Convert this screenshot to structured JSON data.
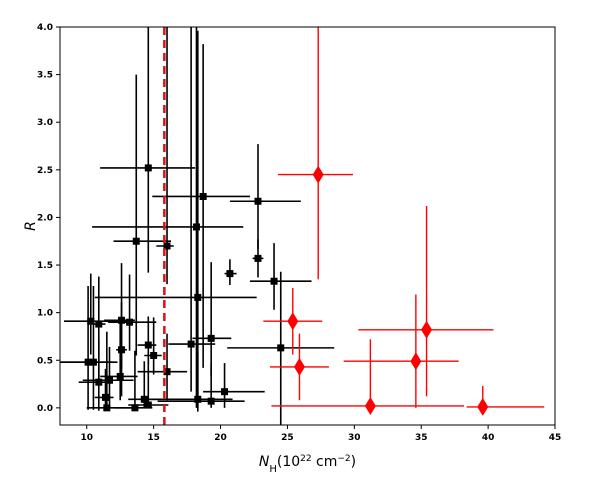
{
  "chart_data": {
    "type": "scatter",
    "xlabel_base": "N",
    "xlabel_sub": "H",
    "xlabel_unit_pre": "(10",
    "xlabel_unit_exp": "22",
    "xlabel_unit_mid": " cm",
    "xlabel_unit_exp2": "−2",
    "xlabel_unit_post": ")",
    "ylabel": "R",
    "xlim": [
      8,
      45
    ],
    "ylim": [
      -0.18,
      4.0
    ],
    "xticks": [
      10,
      15,
      20,
      25,
      30,
      35,
      40,
      45
    ],
    "yticks": [
      0.0,
      0.5,
      1.0,
      1.5,
      2.0,
      2.5,
      3.0,
      3.5,
      4.0
    ],
    "ytick_labels": [
      "0.0",
      "0.5",
      "1.0",
      "1.5",
      "2.0",
      "2.5",
      "3.0",
      "3.5",
      "4.0"
    ],
    "grid": false,
    "threshold_x": 15.8,
    "colors": {
      "group_1": "#000000",
      "group_2": "#ff0000",
      "threshold": "#dd1111"
    },
    "series": [
      {
        "marker": "square",
        "color": "#000000",
        "points": [
          {
            "x": 14.6,
            "y": 2.52,
            "xerr": [
              3.6,
              3.5
            ],
            "yerr": [
              1.1,
              1.6
            ]
          },
          {
            "x": 18.7,
            "y": 2.22,
            "xerr": [
              3.8,
              3.5
            ],
            "yerr": [
              1.8,
              1.6
            ]
          },
          {
            "x": 22.8,
            "y": 2.17,
            "xerr": [
              2.1,
              3.2
            ],
            "yerr": [
              0.5,
              0.6
            ]
          },
          {
            "x": 18.2,
            "y": 1.9,
            "xerr": [
              7.8,
              3.5
            ],
            "yerr": [
              1.9,
              2.1
            ]
          },
          {
            "x": 13.7,
            "y": 1.75,
            "xerr": [
              1.7,
              2.6
            ],
            "yerr": [
              1.2,
              1.75
            ]
          },
          {
            "x": 16.0,
            "y": 1.7,
            "xerr": [
              0.8,
              0.5
            ],
            "yerr": [
              0.4,
              2.3
            ]
          },
          {
            "x": 22.8,
            "y": 1.57,
            "xerr": [
              0.4,
              0.4
            ],
            "yerr": [
              0.2,
              0.2
            ]
          },
          {
            "x": 20.7,
            "y": 1.41,
            "xerr": [
              0.4,
              0.5
            ],
            "yerr": [
              0.12,
              0.15
            ]
          },
          {
            "x": 24.0,
            "y": 1.33,
            "xerr": [
              1.8,
              2.8
            ],
            "yerr": [
              0.3,
              0.4
            ]
          },
          {
            "x": 18.3,
            "y": 1.16,
            "xerr": [
              7.7,
              4.4
            ],
            "yerr": [
              1.2,
              2.8
            ]
          },
          {
            "x": 12.6,
            "y": 0.92,
            "xerr": [
              1.3,
              1.0
            ],
            "yerr": [
              0.8,
              0.6
            ]
          },
          {
            "x": 10.3,
            "y": 0.91,
            "xerr": [
              2.0,
              3.0
            ],
            "yerr": [
              0.35,
              0.5
            ]
          },
          {
            "x": 10.9,
            "y": 0.88,
            "xerr": [
              0.4,
              0.5
            ],
            "yerr": [
              0.6,
              0.5
            ]
          },
          {
            "x": 13.2,
            "y": 0.9,
            "xerr": [
              1.6,
              2.0
            ],
            "yerr": [
              0.3,
              0.5
            ]
          },
          {
            "x": 14.6,
            "y": 0.66,
            "xerr": [
              0.8,
              0.6
            ],
            "yerr": [
              0.2,
              0.3
            ]
          },
          {
            "x": 19.3,
            "y": 0.73,
            "xerr": [
              1.4,
              1.5
            ],
            "yerr": [
              0.4,
              0.8
            ]
          },
          {
            "x": 17.8,
            "y": 0.67,
            "xerr": [
              1.7,
              1.8
            ],
            "yerr": [
              0.5,
              3.5
            ]
          },
          {
            "x": 24.5,
            "y": 0.63,
            "xerr": [
              4.0,
              4.0
            ],
            "yerr": [
              0.9,
              0.8
            ]
          },
          {
            "x": 12.6,
            "y": 0.61,
            "xerr": [
              0.4,
              0.4
            ],
            "yerr": [
              0.2,
              0.5
            ]
          },
          {
            "x": 15.0,
            "y": 0.55,
            "xerr": [
              0.7,
              0.6
            ],
            "yerr": [
              0.2,
              0.4
            ]
          },
          {
            "x": 10.1,
            "y": 0.48,
            "xerr": [
              2.2,
              1.8
            ],
            "yerr": [
              0.5,
              0.8
            ]
          },
          {
            "x": 10.5,
            "y": 0.48,
            "xerr": [
              2.6,
              1.8
            ],
            "yerr": [
              0.5,
              0.8
            ]
          },
          {
            "x": 16.0,
            "y": 0.38,
            "xerr": [
              2.2,
              1.5
            ],
            "yerr": [
              0.3,
              0.4
            ]
          },
          {
            "x": 12.5,
            "y": 0.33,
            "xerr": [
              1.5,
              1.3
            ],
            "yerr": [
              0.25,
              0.6
            ]
          },
          {
            "x": 10.9,
            "y": 0.27,
            "xerr": [
              1.5,
              1.0
            ],
            "yerr": [
              0.3,
              0.45
            ]
          },
          {
            "x": 11.7,
            "y": 0.29,
            "xerr": [
              2.0,
              1.8
            ],
            "yerr": [
              0.3,
              0.35
            ]
          },
          {
            "x": 20.3,
            "y": 0.17,
            "xerr": [
              1.6,
              3.0
            ],
            "yerr": [
              0.17,
              0.3
            ]
          },
          {
            "x": 11.4,
            "y": 0.11,
            "xerr": [
              0.8,
              0.6
            ],
            "yerr": [
              0.11,
              0.3
            ]
          },
          {
            "x": 14.3,
            "y": 0.09,
            "xerr": [
              1.2,
              1.0
            ],
            "yerr": [
              0.09,
              0.4
            ]
          },
          {
            "x": 18.3,
            "y": 0.09,
            "xerr": [
              4.0,
              2.6
            ],
            "yerr": [
              0.09,
              0.5
            ]
          },
          {
            "x": 19.3,
            "y": 0.07,
            "xerr": [
              4.0,
              2.5
            ],
            "yerr": [
              0.07,
              0.4
            ]
          },
          {
            "x": 14.6,
            "y": 0.03,
            "xerr": [
              1.5,
              1.5
            ],
            "yerr": [
              0.03,
              0.5
            ]
          },
          {
            "x": 11.5,
            "y": 0.0,
            "xerr": [
              1.5,
              2.0
            ],
            "yerr": [
              0.0,
              0.8
            ]
          },
          {
            "x": 13.6,
            "y": 0.0,
            "xerr": [
              1.5,
              1.3
            ],
            "yerr": [
              0.0,
              0.6
            ]
          }
        ]
      },
      {
        "marker": "diamond",
        "color": "#ff0000",
        "points": [
          {
            "x": 27.3,
            "y": 2.45,
            "xerr": [
              3.0,
              2.6
            ],
            "yerr": [
              1.1,
              1.6
            ]
          },
          {
            "x": 25.4,
            "y": 0.91,
            "xerr": [
              2.2,
              2.2
            ],
            "yerr": [
              0.35,
              0.35
            ]
          },
          {
            "x": 25.9,
            "y": 0.43,
            "xerr": [
              2.2,
              2.2
            ],
            "yerr": [
              0.35,
              0.35
            ]
          },
          {
            "x": 35.4,
            "y": 0.82,
            "xerr": [
              5.1,
              5.0
            ],
            "yerr": [
              0.7,
              1.3
            ]
          },
          {
            "x": 34.6,
            "y": 0.49,
            "xerr": [
              5.4,
              3.2
            ],
            "yerr": [
              0.49,
              0.7
            ]
          },
          {
            "x": 31.2,
            "y": 0.02,
            "xerr": [
              7.4,
              7.0
            ],
            "yerr": [
              0.02,
              0.7
            ]
          },
          {
            "x": 39.6,
            "y": 0.01,
            "xerr": [
              1.2,
              4.6
            ],
            "yerr": [
              0.01,
              0.22
            ]
          }
        ]
      }
    ]
  }
}
